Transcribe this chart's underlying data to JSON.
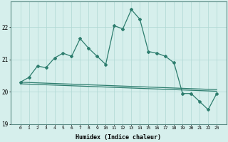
{
  "xlabel": "Humidex (Indice chaleur)",
  "x_values": [
    0,
    1,
    2,
    3,
    4,
    5,
    6,
    7,
    8,
    9,
    10,
    11,
    12,
    13,
    14,
    15,
    16,
    17,
    18,
    19,
    20,
    21,
    22,
    23
  ],
  "y_main": [
    20.3,
    20.45,
    20.8,
    20.75,
    21.05,
    21.2,
    21.1,
    21.65,
    21.35,
    21.1,
    20.85,
    22.05,
    21.95,
    22.55,
    22.25,
    21.25,
    21.2,
    21.1,
    20.9,
    19.95,
    19.95,
    19.7,
    19.45,
    19.95
  ],
  "y_trend1": [
    20.3,
    20.29,
    20.28,
    20.27,
    20.26,
    20.25,
    20.24,
    20.23,
    20.22,
    20.21,
    20.2,
    20.19,
    20.18,
    20.17,
    20.16,
    20.15,
    20.14,
    20.13,
    20.12,
    20.11,
    20.1,
    20.09,
    20.08,
    20.07
  ],
  "y_trend2": [
    20.25,
    20.24,
    20.23,
    20.22,
    20.21,
    20.2,
    20.19,
    20.18,
    20.17,
    20.16,
    20.15,
    20.14,
    20.13,
    20.12,
    20.11,
    20.1,
    20.09,
    20.08,
    20.07,
    20.06,
    20.05,
    20.04,
    20.03,
    20.02
  ],
  "line_color": "#2d7d6e",
  "bg_color": "#d6efec",
  "grid_color": "#afd8d3",
  "ylim": [
    19.0,
    22.8
  ],
  "yticks": [
    19,
    20,
    21,
    22
  ],
  "xticks": [
    0,
    1,
    2,
    3,
    4,
    5,
    6,
    7,
    8,
    9,
    10,
    11,
    12,
    13,
    14,
    15,
    16,
    17,
    18,
    19,
    20,
    21,
    22,
    23
  ]
}
